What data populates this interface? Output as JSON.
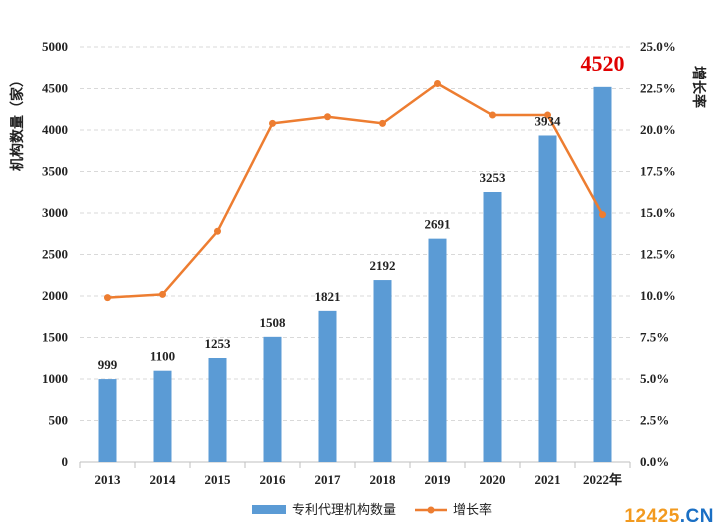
{
  "chart_data": {
    "type": "bar+line",
    "categories": [
      "2013",
      "2014",
      "2015",
      "2016",
      "2017",
      "2018",
      "2019",
      "2020",
      "2021",
      "2022年"
    ],
    "series": [
      {
        "name": "专利代理机构数量",
        "type": "bar",
        "axis": "left",
        "values": [
          999,
          1100,
          1253,
          1508,
          1821,
          2192,
          2691,
          3253,
          3934,
          4520
        ],
        "color": "#5b9bd5"
      },
      {
        "name": "增长率",
        "type": "line",
        "axis": "right",
        "values": [
          9.9,
          10.1,
          13.9,
          20.4,
          20.8,
          20.4,
          22.8,
          20.9,
          20.9,
          14.9
        ],
        "color": "#ed7d31"
      }
    ],
    "data_labels": [
      "999",
      "1100",
      "1253",
      "1508",
      "1821",
      "2192",
      "2691",
      "3253",
      "3934",
      "4520"
    ],
    "highlight_index": 9,
    "highlight_color": "#e00000",
    "ylabel": "机构数量（家）",
    "ylabel_right": "增长率",
    "ylim": [
      0,
      5000
    ],
    "yticks": [
      "0",
      "500",
      "1000",
      "1500",
      "2000",
      "2500",
      "3000",
      "3500",
      "4000",
      "4500",
      "5000"
    ],
    "ylim_right": [
      0,
      25
    ],
    "yticks_right": [
      "0.0%",
      "2.5%",
      "5.0%",
      "7.5%",
      "10.0%",
      "12.5%",
      "15.0%",
      "17.5%",
      "20.0%",
      "22.5%",
      "25.0%"
    ],
    "grid": true,
    "legend_position": "bottom"
  },
  "watermark": {
    "number": "12425",
    "dot": ".",
    "suffix": "CN"
  }
}
